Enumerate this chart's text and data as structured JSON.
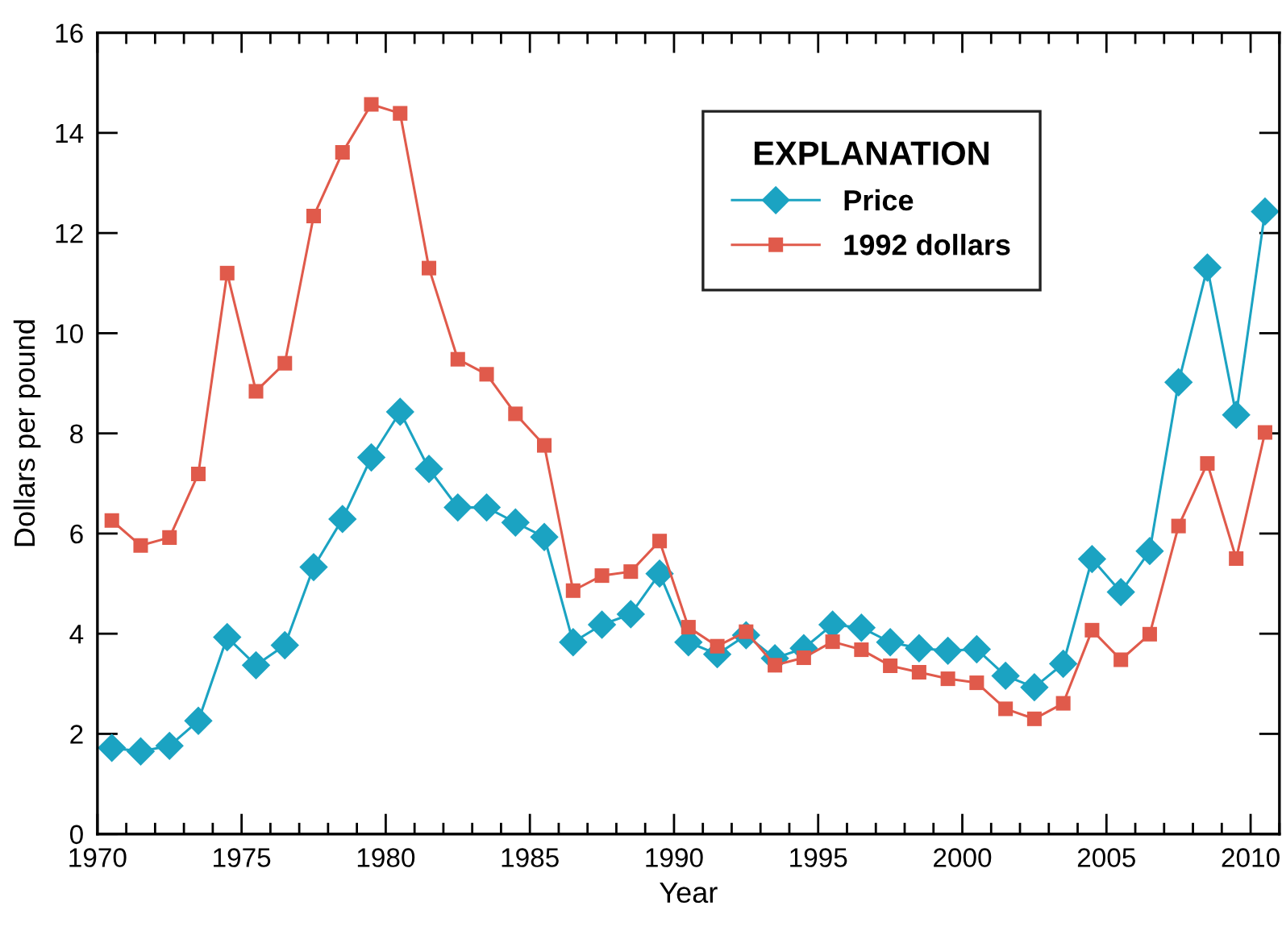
{
  "chart_data": {
    "type": "line",
    "xlabel": "Year",
    "ylabel": "Dollars per pound",
    "legend_title": "EXPLANATION",
    "x": [
      1970.5,
      1971.5,
      1972.5,
      1973.5,
      1974.5,
      1975.5,
      1976.5,
      1977.5,
      1978.5,
      1979.5,
      1980.5,
      1981.5,
      1982.5,
      1983.5,
      1984.5,
      1985.5,
      1986.5,
      1987.5,
      1988.5,
      1989.5,
      1990.5,
      1991.5,
      1992.5,
      1993.5,
      1994.5,
      1995.5,
      1996.5,
      1997.5,
      1998.5,
      1999.5,
      2000.5,
      2001.5,
      2002.5,
      2003.5,
      2004.5,
      2005.5,
      2006.5,
      2007.5,
      2008.5,
      2009.5,
      2010.5
    ],
    "series": [
      {
        "name": "Price",
        "color": "#1ba3c2",
        "marker": "diamond",
        "values": [
          1.72,
          1.65,
          1.76,
          2.26,
          3.93,
          3.37,
          3.77,
          5.33,
          6.29,
          7.52,
          8.43,
          7.29,
          6.52,
          6.52,
          6.22,
          5.93,
          3.83,
          4.18,
          4.39,
          5.2,
          3.83,
          3.59,
          3.97,
          3.51,
          3.71,
          4.18,
          4.12,
          3.83,
          3.71,
          3.66,
          3.69,
          3.16,
          2.93,
          3.4,
          5.49,
          4.83,
          5.65,
          9.02,
          11.31,
          8.37,
          12.43
        ]
      },
      {
        "name": "1992 dollars",
        "color": "#e05a4b",
        "marker": "square",
        "values": [
          6.26,
          5.76,
          5.92,
          7.19,
          11.2,
          8.84,
          9.4,
          12.34,
          13.61,
          14.57,
          14.39,
          11.3,
          9.48,
          9.18,
          8.39,
          7.76,
          4.86,
          5.16,
          5.24,
          5.85,
          4.13,
          3.75,
          4.04,
          3.37,
          3.52,
          3.84,
          3.68,
          3.36,
          3.23,
          3.1,
          3.02,
          2.5,
          2.3,
          2.61,
          4.07,
          3.48,
          3.99,
          6.15,
          7.4,
          5.5,
          8.02
        ]
      }
    ],
    "xlim": [
      1970,
      2011
    ],
    "ylim": [
      0,
      16
    ],
    "xticks": [
      1970,
      {
        "value": 1971,
        "label": null
      },
      {
        "value": 1972,
        "label": null
      },
      {
        "value": 1973,
        "label": null
      },
      {
        "value": 1974,
        "label": null
      },
      1975,
      {
        "value": 1976,
        "label": null
      },
      {
        "value": 1977,
        "label": null
      },
      {
        "value": 1978,
        "label": null
      },
      {
        "value": 1979,
        "label": null
      },
      1980,
      {
        "value": 1981,
        "label": null
      },
      {
        "value": 1982,
        "label": null
      },
      {
        "value": 1983,
        "label": null
      },
      {
        "value": 1984,
        "label": null
      },
      1985,
      {
        "value": 1986,
        "label": null
      },
      {
        "value": 1987,
        "label": null
      },
      {
        "value": 1988,
        "label": null
      },
      {
        "value": 1989,
        "label": null
      },
      1990,
      {
        "value": 1991,
        "label": null
      },
      {
        "value": 1992,
        "label": null
      },
      {
        "value": 1993,
        "label": null
      },
      {
        "value": 1994,
        "label": null
      },
      1995,
      {
        "value": 1996,
        "label": null
      },
      {
        "value": 1997,
        "label": null
      },
      {
        "value": 1998,
        "label": null
      },
      {
        "value": 1999,
        "label": null
      },
      2000,
      {
        "value": 2001,
        "label": null
      },
      {
        "value": 2002,
        "label": null
      },
      {
        "value": 2003,
        "label": null
      },
      {
        "value": 2004,
        "label": null
      },
      2005,
      {
        "value": 2006,
        "label": null
      },
      {
        "value": 2007,
        "label": null
      },
      {
        "value": 2008,
        "label": null
      },
      {
        "value": 2009,
        "label": null
      },
      2010,
      {
        "value": 2011,
        "label": null
      }
    ],
    "yticks": [
      0,
      2,
      4,
      6,
      8,
      10,
      12,
      14,
      16
    ],
    "grid": false,
    "legend": "top",
    "line_style": "solid"
  }
}
